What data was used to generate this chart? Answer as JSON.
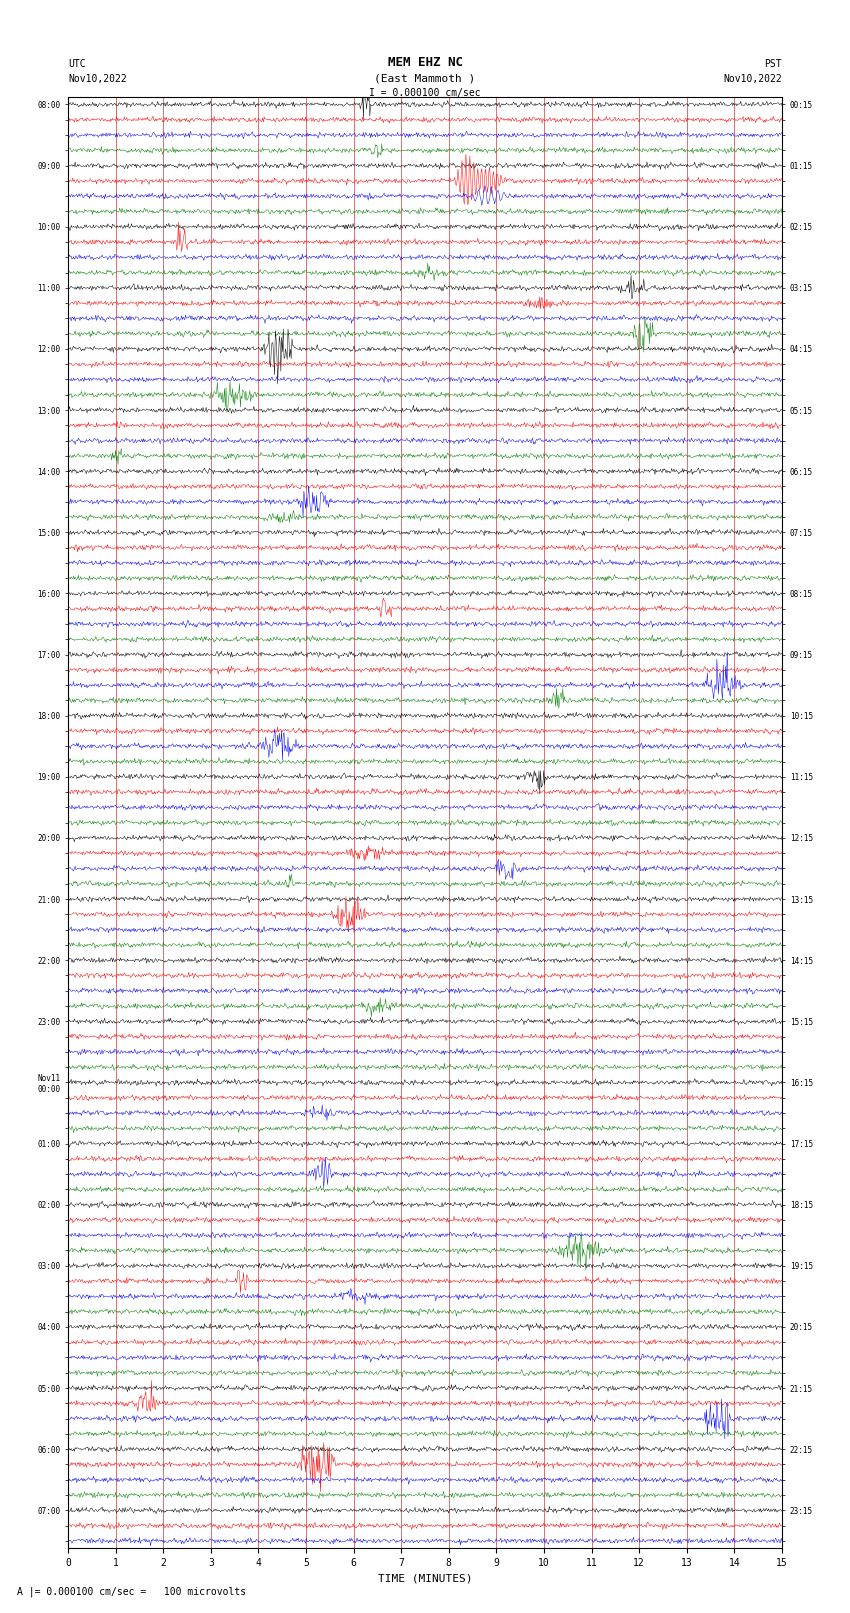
{
  "title_line1": "MEM EHZ NC",
  "title_line2": "(East Mammoth )",
  "scale_label": "I = 0.000100 cm/sec",
  "footer_label": "A |= 0.000100 cm/sec =   100 microvolts",
  "xlabel": "TIME (MINUTES)",
  "left_times_utc": [
    "08:00",
    "",
    "",
    "",
    "09:00",
    "",
    "",
    "",
    "10:00",
    "",
    "",
    "",
    "11:00",
    "",
    "",
    "",
    "12:00",
    "",
    "",
    "",
    "13:00",
    "",
    "",
    "",
    "14:00",
    "",
    "",
    "",
    "15:00",
    "",
    "",
    "",
    "16:00",
    "",
    "",
    "",
    "17:00",
    "",
    "",
    "",
    "18:00",
    "",
    "",
    "",
    "19:00",
    "",
    "",
    "",
    "20:00",
    "",
    "",
    "",
    "21:00",
    "",
    "",
    "",
    "22:00",
    "",
    "",
    "",
    "23:00",
    "",
    "",
    "",
    "Nov11\n00:00",
    "",
    "",
    "",
    "01:00",
    "",
    "",
    "",
    "02:00",
    "",
    "",
    "",
    "03:00",
    "",
    "",
    "",
    "04:00",
    "",
    "",
    "",
    "05:00",
    "",
    "",
    "",
    "06:00",
    "",
    "",
    "",
    "07:00",
    "",
    ""
  ],
  "right_times_pst": [
    "00:15",
    "",
    "",
    "",
    "01:15",
    "",
    "",
    "",
    "02:15",
    "",
    "",
    "",
    "03:15",
    "",
    "",
    "",
    "04:15",
    "",
    "",
    "",
    "05:15",
    "",
    "",
    "",
    "06:15",
    "",
    "",
    "",
    "07:15",
    "",
    "",
    "",
    "08:15",
    "",
    "",
    "",
    "09:15",
    "",
    "",
    "",
    "10:15",
    "",
    "",
    "",
    "11:15",
    "",
    "",
    "",
    "12:15",
    "",
    "",
    "",
    "13:15",
    "",
    "",
    "",
    "14:15",
    "",
    "",
    "",
    "15:15",
    "",
    "",
    "",
    "16:15",
    "",
    "",
    "",
    "17:15",
    "",
    "",
    "",
    "18:15",
    "",
    "",
    "",
    "19:15",
    "",
    "",
    "",
    "20:15",
    "",
    "",
    "",
    "21:15",
    "",
    "",
    "",
    "22:15",
    "",
    "",
    "",
    "23:15",
    "",
    ""
  ],
  "n_rows": 95,
  "row_colors": [
    "black",
    "red",
    "blue",
    "green"
  ],
  "background_color": "white",
  "grid_color": "#cc0000",
  "noise_amplitude": 0.08,
  "figsize": [
    8.5,
    16.13
  ],
  "dpi": 100,
  "xmin": 0,
  "xmax": 15,
  "xticks": [
    0,
    1,
    2,
    3,
    4,
    5,
    6,
    7,
    8,
    9,
    10,
    11,
    12,
    13,
    14,
    15
  ]
}
